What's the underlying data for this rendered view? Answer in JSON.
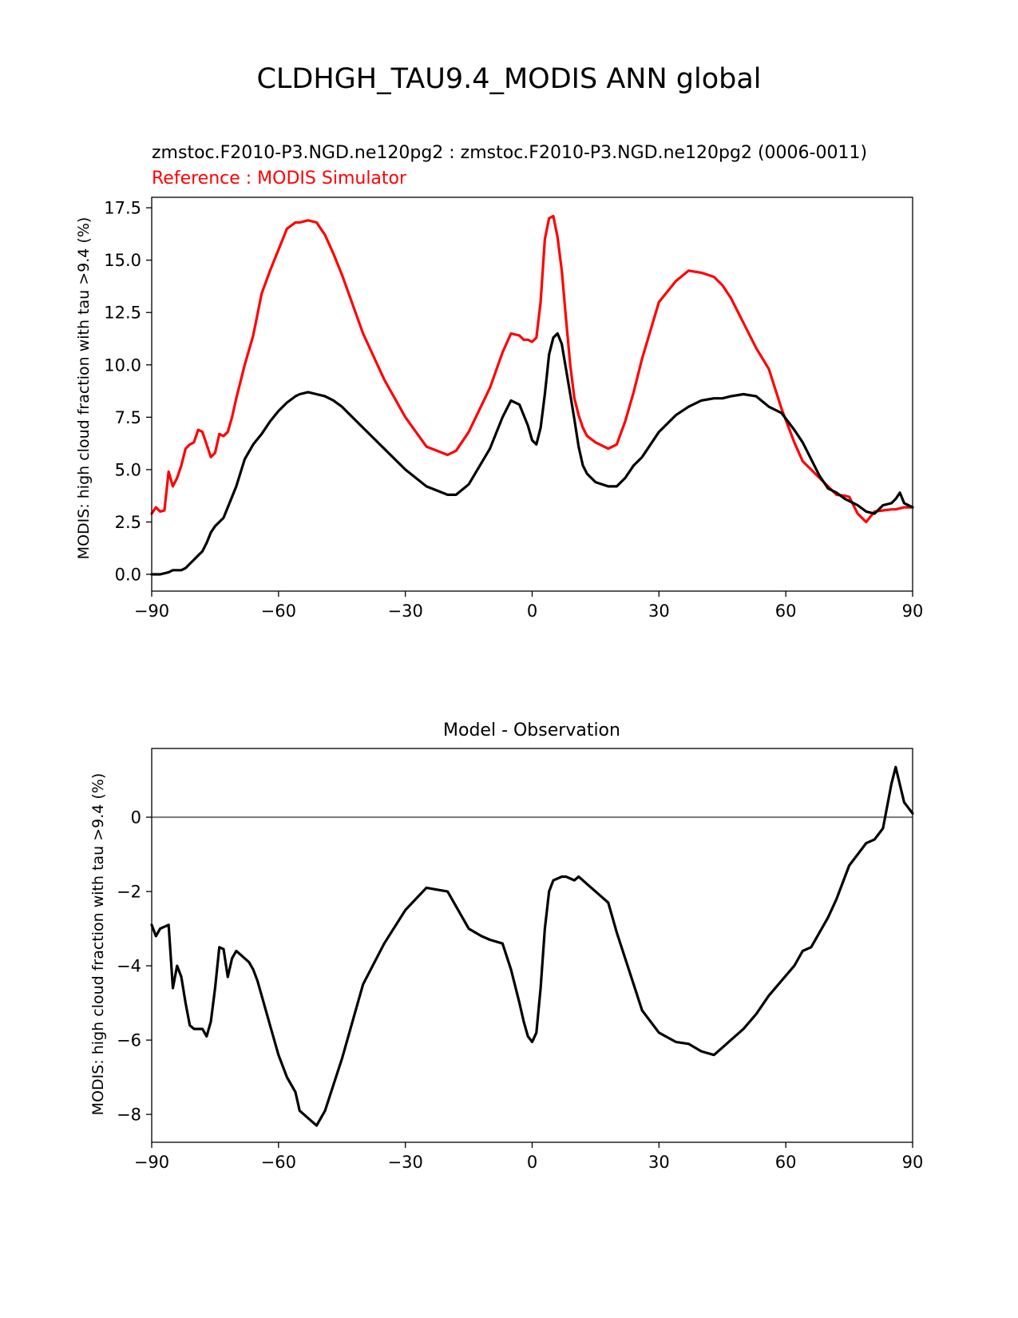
{
  "suptitle": "CLDHGH_TAU9.4_MODIS ANN global",
  "chart_data": [
    {
      "type": "line",
      "test_label": "zmstoc.F2010-P3.NGD.ne120pg2 : zmstoc.F2010-P3.NGD.ne120pg2 (0006-0011)",
      "ref_label": "Reference : MODIS Simulator",
      "xlabel": "",
      "ylabel": "MODIS: high cloud fraction with tau >9.4 (%)",
      "xlim": [
        -90,
        90
      ],
      "ylim": [
        -0.8,
        18.0
      ],
      "xticks": [
        -90,
        -60,
        -30,
        0,
        30,
        60,
        90
      ],
      "xtick_labels": [
        "−90",
        "−60",
        "−30",
        "0",
        "30",
        "60",
        "90"
      ],
      "yticks": [
        0.0,
        2.5,
        5.0,
        7.5,
        10.0,
        12.5,
        15.0,
        17.5
      ],
      "ytick_labels": [
        "0.0",
        "2.5",
        "5.0",
        "7.5",
        "10.0",
        "12.5",
        "15.0",
        "17.5"
      ],
      "series": [
        {
          "name": "MODIS Simulator",
          "color": "#ff0000",
          "x": [
            -90,
            -89,
            -88,
            -87,
            -86,
            -85,
            -84,
            -83,
            -82,
            -81,
            -80,
            -79,
            -78,
            -77,
            -76,
            -75,
            -74,
            -73,
            -72,
            -71,
            -70,
            -68,
            -66,
            -64,
            -62,
            -60,
            -58,
            -56,
            -55,
            -53,
            -51,
            -49,
            -47,
            -45,
            -40,
            -35,
            -30,
            -25,
            -20,
            -18,
            -15,
            -10,
            -7,
            -5,
            -3,
            -2,
            -1,
            0,
            1,
            2,
            3,
            4,
            5,
            6,
            7,
            8,
            9,
            10,
            11,
            12,
            13,
            15,
            18,
            20,
            22,
            24,
            26,
            30,
            34,
            37,
            40,
            43,
            45,
            47,
            50,
            53,
            56,
            59,
            62,
            64,
            66,
            68,
            70,
            72,
            74,
            75,
            77,
            79,
            81,
            83,
            85,
            86,
            88,
            90
          ],
          "values": [
            2.9,
            3.2,
            3.0,
            3.05,
            4.9,
            4.2,
            4.6,
            5.2,
            6.0,
            6.2,
            6.3,
            6.9,
            6.8,
            6.2,
            5.6,
            5.8,
            6.7,
            6.6,
            6.8,
            7.5,
            8.4,
            10.0,
            11.4,
            13.4,
            14.5,
            15.5,
            16.5,
            16.8,
            16.8,
            16.9,
            16.8,
            16.2,
            15.3,
            14.3,
            11.5,
            9.3,
            7.5,
            6.1,
            5.7,
            5.9,
            6.8,
            8.9,
            10.6,
            11.5,
            11.4,
            11.2,
            11.2,
            11.1,
            11.3,
            13.0,
            16.0,
            17.0,
            17.1,
            16.1,
            14.5,
            12.2,
            10.0,
            8.4,
            7.6,
            7.0,
            6.6,
            6.3,
            6.0,
            6.2,
            7.3,
            8.7,
            10.3,
            13.0,
            14.0,
            14.5,
            14.4,
            14.2,
            13.8,
            13.2,
            12.0,
            10.8,
            9.8,
            7.9,
            6.3,
            5.4,
            5.0,
            4.6,
            4.2,
            3.8,
            3.75,
            3.7,
            2.9,
            2.5,
            3.0,
            3.05,
            3.1,
            3.1,
            3.2,
            3.2
          ]
        },
        {
          "name": "zmstoc.F2010-P3.NGD.ne120pg2",
          "color": "#000000",
          "x": [
            -90,
            -88,
            -86,
            -85,
            -84,
            -83,
            -82,
            -81,
            -80,
            -79,
            -78,
            -77,
            -76,
            -75,
            -74,
            -73,
            -72,
            -71,
            -70,
            -68,
            -66,
            -64,
            -62,
            -60,
            -58,
            -56,
            -55,
            -53,
            -51,
            -49,
            -47,
            -45,
            -40,
            -35,
            -30,
            -25,
            -20,
            -18,
            -15,
            -10,
            -7,
            -5,
            -3,
            -2,
            -1,
            0,
            1,
            2,
            3,
            4,
            5,
            6,
            7,
            8,
            9,
            10,
            11,
            12,
            13,
            15,
            18,
            20,
            22,
            24,
            26,
            30,
            34,
            37,
            40,
            43,
            45,
            47,
            50,
            53,
            56,
            59,
            62,
            64,
            66,
            68,
            70,
            72,
            74,
            75,
            77,
            79,
            81,
            83,
            85,
            86,
            87,
            88,
            90
          ],
          "values": [
            0.0,
            0.0,
            0.1,
            0.2,
            0.2,
            0.2,
            0.3,
            0.5,
            0.7,
            0.9,
            1.1,
            1.5,
            2.0,
            2.3,
            2.5,
            2.7,
            3.2,
            3.7,
            4.2,
            5.5,
            6.2,
            6.7,
            7.3,
            7.8,
            8.2,
            8.5,
            8.6,
            8.7,
            8.6,
            8.5,
            8.3,
            8.0,
            7.0,
            6.0,
            5.0,
            4.2,
            3.8,
            3.8,
            4.3,
            6.0,
            7.5,
            8.3,
            8.1,
            7.6,
            7.1,
            6.4,
            6.2,
            7.0,
            8.6,
            10.5,
            11.3,
            11.5,
            11.0,
            9.8,
            8.6,
            7.4,
            6.1,
            5.2,
            4.8,
            4.4,
            4.2,
            4.2,
            4.6,
            5.2,
            5.6,
            6.8,
            7.6,
            8.0,
            8.3,
            8.4,
            8.4,
            8.5,
            8.6,
            8.5,
            8.0,
            7.7,
            6.9,
            6.3,
            5.5,
            4.7,
            4.1,
            3.9,
            3.6,
            3.5,
            3.3,
            3.0,
            2.9,
            3.3,
            3.4,
            3.6,
            3.9,
            3.4,
            3.2
          ]
        }
      ]
    },
    {
      "type": "line",
      "title": "Model - Observation",
      "xlabel": "",
      "ylabel": "MODIS: high cloud fraction with tau >9.4 (%)",
      "xlim": [
        -90,
        90
      ],
      "ylim": [
        -8.75,
        1.85
      ],
      "xticks": [
        -90,
        -60,
        -30,
        0,
        30,
        60,
        90
      ],
      "xtick_labels": [
        "−90",
        "−60",
        "−30",
        "0",
        "30",
        "60",
        "90"
      ],
      "yticks": [
        -8,
        -6,
        -4,
        -2,
        0
      ],
      "ytick_labels": [
        "−8",
        "−6",
        "−4",
        "−2",
        "0"
      ],
      "zero_line_color": "#808080",
      "series": [
        {
          "name": "Model - Observation",
          "color": "#000000",
          "x": [
            -90,
            -89,
            -88,
            -87,
            -86,
            -85,
            -84,
            -83,
            -82,
            -81,
            -80,
            -79,
            -78,
            -77,
            -76,
            -75,
            -74,
            -73,
            -72,
            -71,
            -70,
            -69,
            -68,
            -67,
            -66,
            -65,
            -64,
            -62,
            -60,
            -58,
            -56,
            -55,
            -53,
            -51,
            -49,
            -47,
            -45,
            -40,
            -35,
            -30,
            -25,
            -20,
            -18,
            -15,
            -12,
            -10,
            -7,
            -5,
            -3,
            -2,
            -1,
            0,
            1,
            2,
            3,
            4,
            5,
            6,
            7,
            8,
            9,
            10,
            11,
            12,
            13,
            15,
            18,
            20,
            22,
            24,
            26,
            30,
            34,
            37,
            40,
            43,
            45,
            47,
            50,
            53,
            56,
            59,
            62,
            64,
            66,
            68,
            70,
            72,
            74,
            75,
            77,
            79,
            81,
            83,
            85,
            86,
            88,
            90
          ],
          "values": [
            -2.9,
            -3.2,
            -3.0,
            -2.95,
            -2.9,
            -4.6,
            -4.0,
            -4.3,
            -5.0,
            -5.6,
            -5.7,
            -5.7,
            -5.7,
            -5.9,
            -5.5,
            -4.6,
            -3.5,
            -3.55,
            -4.3,
            -3.8,
            -3.6,
            -3.7,
            -3.8,
            -3.9,
            -4.1,
            -4.4,
            -4.8,
            -5.6,
            -6.4,
            -7.0,
            -7.4,
            -7.9,
            -8.1,
            -8.3,
            -7.9,
            -7.2,
            -6.5,
            -4.5,
            -3.4,
            -2.5,
            -1.9,
            -2.0,
            -2.4,
            -3.0,
            -3.2,
            -3.3,
            -3.4,
            -4.1,
            -5.0,
            -5.5,
            -5.9,
            -6.05,
            -5.8,
            -4.6,
            -3.0,
            -2.0,
            -1.7,
            -1.65,
            -1.6,
            -1.6,
            -1.65,
            -1.7,
            -1.6,
            -1.7,
            -1.8,
            -2.0,
            -2.3,
            -3.1,
            -3.8,
            -4.5,
            -5.2,
            -5.8,
            -6.05,
            -6.1,
            -6.3,
            -6.4,
            -6.2,
            -6.0,
            -5.7,
            -5.3,
            -4.8,
            -4.4,
            -4.0,
            -3.6,
            -3.5,
            -3.1,
            -2.7,
            -2.2,
            -1.6,
            -1.3,
            -1.0,
            -0.7,
            -0.6,
            -0.3,
            0.9,
            1.35,
            0.4,
            0.1
          ]
        }
      ]
    }
  ]
}
